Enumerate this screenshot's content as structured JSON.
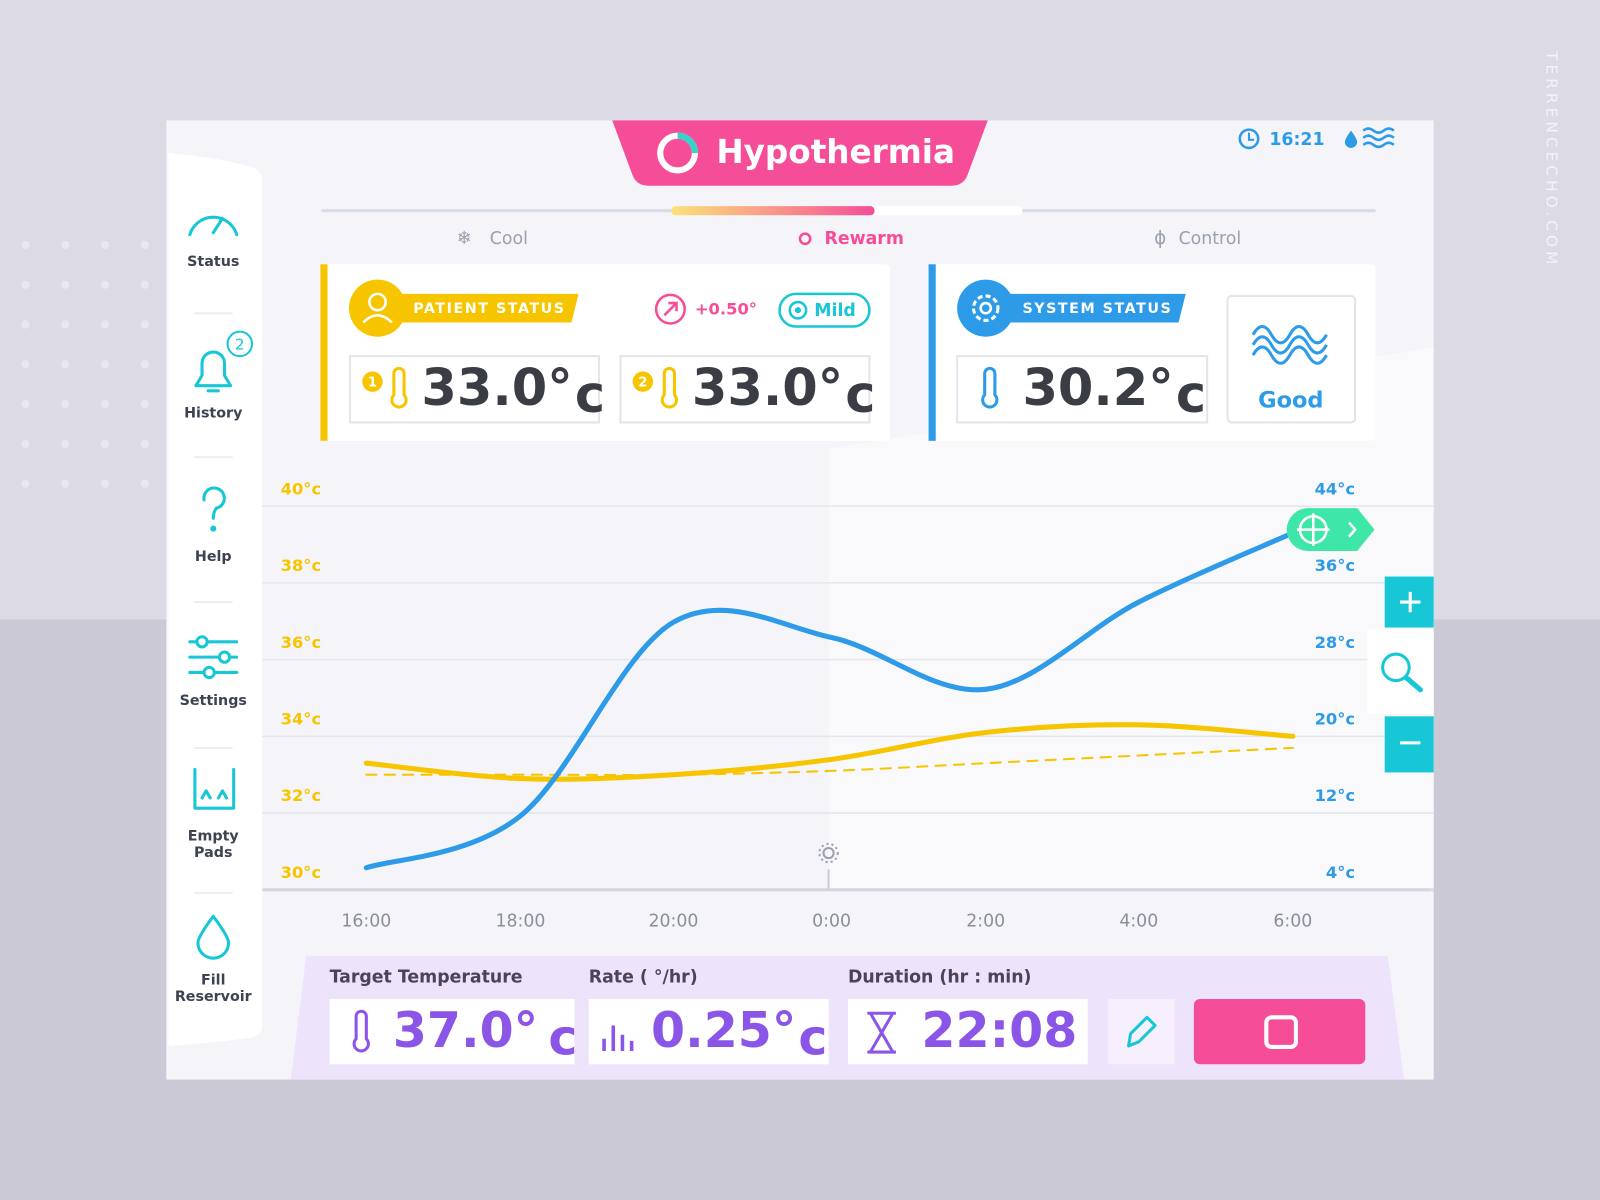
{
  "header": {
    "title": "Hypothermia",
    "time": "16:21"
  },
  "phases": [
    "Cool",
    "Rewarm",
    "Control"
  ],
  "sidebar": [
    {
      "label": "Status"
    },
    {
      "label": "History",
      "badge": "2"
    },
    {
      "label": "Help"
    },
    {
      "label": "Settings"
    },
    {
      "label": [
        "Empty",
        "Pads"
      ]
    },
    {
      "label": [
        "Fill",
        "Reservoir"
      ]
    }
  ],
  "patient_status": {
    "title": "PATIENT STATUS",
    "rate": "+0.50°",
    "level": "Mild",
    "sensors": [
      {
        "number": "1",
        "value": "33.0°",
        "unit": "c"
      },
      {
        "number": "2",
        "value": "33.0°",
        "unit": "c"
      }
    ]
  },
  "system_status": {
    "title": "SYSTEM STATUS",
    "value": "30.2°",
    "unit": "c",
    "state": "Good"
  },
  "chart": {
    "type": "line",
    "categories": [
      "16:00",
      "18:00",
      "20:00",
      "0:00",
      "2:00",
      "4:00",
      "6:00"
    ],
    "ylim": [
      30,
      40
    ],
    "yticks": [
      {
        "value": 30,
        "label": "30°c"
      },
      {
        "value": 32,
        "label": "32°c"
      },
      {
        "value": 34,
        "label": "34°c"
      },
      {
        "value": 36,
        "label": "36°c"
      },
      {
        "value": 38,
        "label": "38°c"
      },
      {
        "value": 40,
        "label": "40°c"
      }
    ],
    "y2lim": [
      4,
      44
    ],
    "y2ticks": [
      {
        "value": 4,
        "label": "4°c"
      },
      {
        "value": 12,
        "label": "12°c"
      },
      {
        "value": 20,
        "label": "20°c"
      },
      {
        "value": 28,
        "label": "28°c"
      },
      {
        "value": 36,
        "label": "36°c"
      },
      {
        "value": 44,
        "label": "44°c"
      }
    ],
    "grid": true,
    "series": [
      {
        "color": "#2d9be8",
        "axis": "y2",
        "values": [
          6.3,
          11.7,
          31.9,
          30.3,
          24.9,
          34,
          41.2
        ]
      },
      {
        "color": "#f7c500",
        "values": [
          33.3,
          32.9,
          33.0,
          33.4,
          34.1,
          34.3,
          34.0
        ]
      },
      {
        "color": "#f7c500",
        "dashed": true,
        "values": [
          33.0,
          33.0,
          33.0,
          33.1,
          33.3,
          33.5,
          33.7
        ]
      }
    ]
  },
  "controls": [
    {
      "label": "Target Temperature",
      "value": "37.0°",
      "unit": "c"
    },
    {
      "label": "Rate ( °/hr)",
      "value": "0.25°",
      "unit": "c"
    },
    {
      "label": "Duration (hr : min)",
      "value": "22:08"
    }
  ],
  "watermark": "TERRENCECHO.COM"
}
